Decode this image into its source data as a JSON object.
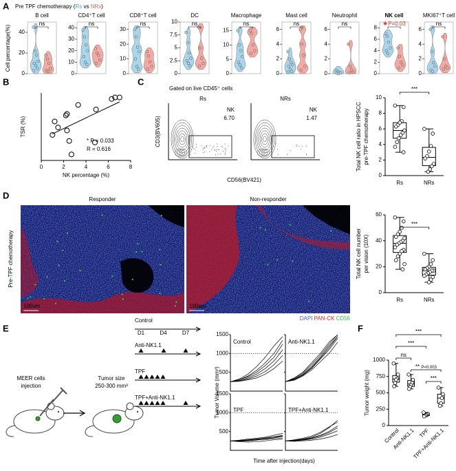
{
  "panels": [
    "A",
    "B",
    "C",
    "D",
    "E",
    "F"
  ],
  "chart_data": [
    {
      "type": "violin",
      "title_parts": [
        "Pre TPF chemotherapy (",
        "Rs",
        " vs ",
        "NRs",
        ")"
      ],
      "title_part_colors": [
        "#000",
        "#4aa8d8",
        "#000",
        "#e06a5f",
        "#000"
      ],
      "ylabel": "Cell percentage(%)",
      "colors": [
        "#a9d6ea",
        "#f3aaa2"
      ],
      "plots": [
        {
          "title": "B cell",
          "ylim": [
            0,
            50
          ],
          "yticks": [
            0,
            20,
            40
          ],
          "sig": "ns",
          "series": [
            {
              "values": [
                45,
                22,
                18,
                12,
                10,
                8,
                5,
                3
              ]
            },
            {
              "values": [
                18,
                14,
                10,
                5,
                3,
                2
              ]
            }
          ]
        },
        {
          "title": "CD4⁺T cell",
          "ylim": [
            0,
            45
          ],
          "yticks": [
            0,
            10,
            20,
            30,
            40
          ],
          "sig": "ns",
          "series": [
            {
              "values": [
                38,
                32,
                25,
                20,
                15,
                10,
                8
              ]
            },
            {
              "values": [
                22,
                18,
                16,
                12,
                9
              ]
            }
          ]
        },
        {
          "title": "CD8⁺T cell",
          "ylim": [
            0,
            35
          ],
          "yticks": [
            0,
            10,
            20,
            30
          ],
          "sig": "ns",
          "series": [
            {
              "values": [
                30,
                25,
                18,
                15,
                10,
                5,
                3
              ]
            },
            {
              "values": [
                15,
                12,
                8,
                5,
                3
              ]
            }
          ]
        },
        {
          "title": "DC",
          "ylim": [
            0,
            10
          ],
          "yticks": [
            0,
            2.5,
            5,
            7.5,
            10
          ],
          "sig": "ns",
          "series": [
            {
              "values": [
                8,
                6,
                4,
                3,
                2.5,
                2,
                1.5
              ]
            },
            {
              "values": [
                9,
                5,
                3,
                2,
                1.5
              ]
            }
          ]
        },
        {
          "title": "Macrophage",
          "ylim": [
            0,
            18
          ],
          "yticks": [
            0,
            5,
            10,
            15
          ],
          "sig": "ns",
          "series": [
            {
              "values": [
                15,
                10,
                8,
                6,
                4,
                3,
                2
              ]
            },
            {
              "values": [
                15,
                14,
                10,
                8,
                7
              ]
            }
          ]
        },
        {
          "title": "Mast cell",
          "ylim": [
            0,
            7
          ],
          "yticks": [
            0,
            2,
            4,
            6
          ],
          "sig": "ns",
          "series": [
            {
              "values": [
                3,
                2,
                1.5,
                1.2,
                1,
                0.6,
                0.3,
                0.2
              ]
            },
            {
              "values": [
                6,
                4,
                2.5,
                1,
                0.5
              ]
            }
          ]
        },
        {
          "title": "Neutrophil",
          "ylim": [
            0,
            7
          ],
          "yticks": [
            0,
            2,
            4,
            6
          ],
          "sig": "ns",
          "series": [
            {
              "values": [
                0.5,
                0.3,
                0.2,
                0.1,
                0.1,
                0
              ]
            },
            {
              "values": [
                4,
                1,
                0.5,
                0.2,
                0.1
              ]
            }
          ]
        },
        {
          "title": "NK cell",
          "bold": true,
          "ylim": [
            0,
            9
          ],
          "yticks": [
            0,
            2,
            4,
            6,
            8
          ],
          "sig_mark": "★",
          "sig": "P=0.03",
          "sig_color": "#e0302a",
          "series": [
            {
              "values": [
                7,
                6.5,
                5.5,
                4.5,
                4,
                3.5
              ]
            },
            {
              "values": [
                4.5,
                3,
                2,
                1.5,
                1
              ]
            }
          ]
        },
        {
          "title": "MKI67⁺T cell",
          "ylim": [
            0,
            7
          ],
          "yticks": [
            0,
            2,
            4,
            6
          ],
          "sig": "ns",
          "series": [
            {
              "values": [
                6,
                3,
                1.5,
                1,
                0.5,
                0.3
              ]
            },
            {
              "values": [
                5,
                2,
                1,
                0.8,
                0.6
              ]
            }
          ]
        }
      ]
    },
    {
      "type": "scatter",
      "xlabel": "NK percentage (%)",
      "ylabel": "TSR (%)",
      "x": [
        1,
        1.2,
        1.5,
        2.2,
        2.3,
        2.3,
        2.5,
        2.7,
        3.3,
        4.8,
        4.9,
        6.3,
        6.6,
        7
      ],
      "y": [
        -25,
        20,
        0,
        40,
        45,
        -10,
        -45,
        -90,
        75,
        -50,
        60,
        95,
        100,
        100
      ],
      "xlim": [
        0,
        8
      ],
      "xticks": [
        0,
        2,
        4,
        6,
        8
      ],
      "ylim": [
        -110,
        115
      ],
      "annotations": [
        "* P = 0.033",
        "R = 0.616"
      ],
      "annotation_color": "#d9362b",
      "color": "#000"
    },
    {
      "type": "flow",
      "header": "Gated on live CD45⁺ cells",
      "xlabel": "CD56(BV421)",
      "ylabel": "CD3(BV605)",
      "plots": [
        {
          "title": "Rs",
          "gate": "NK",
          "value": "6.70"
        },
        {
          "title": "NRs",
          "gate": "NK",
          "value": "1.47"
        }
      ]
    },
    {
      "type": "box",
      "ylabel_lines": [
        "Total NK cell ratio in HPSCC",
        "pre-TPF chemotherapy"
      ],
      "categories": [
        "Rs",
        "NRs"
      ],
      "color": "#000",
      "ylim": [
        0,
        10
      ],
      "yticks": [
        0,
        2,
        4,
        6,
        8,
        10
      ],
      "series": [
        {
          "values": [
            9,
            8.8,
            7,
            6.8,
            6.5,
            6.3,
            5.8,
            5.5,
            5.2,
            4.8,
            4.3,
            3.7,
            3
          ]
        },
        {
          "values": [
            6,
            5.4,
            3.8,
            3.1,
            2.5,
            2.2,
            1.5,
            1.2,
            0.8,
            0.5
          ]
        }
      ],
      "comparisons": [
        {
          "pair": [
            0,
            1
          ],
          "label": "***"
        }
      ]
    },
    {
      "type": "image",
      "titles": [
        "Responder",
        "Non-responder"
      ],
      "side_label": "Pre-TPF chemotherapy",
      "magnification": "10X",
      "scale_bar": "100um",
      "legend": [
        {
          "name": "DAPI",
          "color": "#3a5bff"
        },
        {
          "name": "PAN-CK",
          "color": "#e0202a"
        },
        {
          "name": "CD56",
          "color": "#2fd04a"
        }
      ]
    },
    {
      "type": "box",
      "ylabel_lines": [
        "Total NK cell number",
        "per vision (10X)"
      ],
      "categories": [
        "Rs",
        "NRs"
      ],
      "color": "#000",
      "ylim": [
        0,
        60
      ],
      "yticks": [
        0,
        20,
        40,
        60
      ],
      "series": [
        {
          "values": [
            58,
            55,
            50,
            47,
            45,
            43,
            42,
            40,
            39,
            38,
            37,
            35,
            33,
            32,
            30,
            28,
            25,
            22,
            18
          ]
        },
        {
          "values": [
            30,
            25,
            22,
            20,
            19,
            18,
            17,
            17,
            16,
            15,
            14,
            13,
            12,
            10,
            8
          ]
        }
      ],
      "comparisons": [
        {
          "pair": [
            0,
            1
          ],
          "label": "***"
        }
      ]
    },
    {
      "type": "schematic",
      "cells": [
        "MEER cells",
        "injection"
      ],
      "tumor": [
        "Tumor size",
        "250-300 mm³"
      ],
      "days": [
        "D1",
        "D4",
        "D7"
      ],
      "groups": [
        "Control",
        "Anti-NK1.1",
        "TPF",
        "TPF+Anti-NK1.1"
      ]
    },
    {
      "type": "line",
      "ylabel": "Tumor Volume (mm³)",
      "xlabel": "Time after injection(days)",
      "ylim": [
        0,
        1500
      ],
      "yticks": [
        500,
        1000,
        1500
      ],
      "reference_line": 1000,
      "color": "#000",
      "panels": [
        {
          "series": [
            {
              "values": [
                250,
                300,
                400,
                550,
                750,
                1000,
                1350
              ]
            },
            {
              "values": [
                250,
                280,
                350,
                450,
                600,
                800,
                1100
              ]
            },
            {
              "values": [
                250,
                320,
                450,
                650,
                900,
                1200,
                1450
              ]
            },
            {
              "values": [
                250,
                270,
                320,
                400,
                520,
                700,
                950
              ]
            },
            {
              "values": [
                250,
                300,
                380,
                500,
                680,
                900,
                1250
              ]
            },
            {
              "values": [
                250,
                260,
                300,
                350,
                450,
                600,
                800
              ]
            }
          ]
        },
        {
          "series": [
            {
              "values": [
                250,
                350,
                500,
                750,
                1000,
                1300,
                1500
              ]
            },
            {
              "values": [
                250,
                320,
                450,
                650,
                900,
                1200,
                1450
              ]
            },
            {
              "values": [
                250,
                300,
                420,
                600,
                850,
                1100,
                1400
              ]
            },
            {
              "values": [
                250,
                340,
                480,
                700,
                950,
                1250,
                1500
              ]
            },
            {
              "values": [
                250,
                290,
                400,
                560,
                780,
                1000,
                1300
              ]
            },
            {
              "values": [
                250,
                310,
                430,
                620,
                870,
                1150,
                1450
              ]
            }
          ]
        },
        {
          "series": [
            {
              "values": [
                250,
                260,
                280,
                300,
                330,
                360,
                400
              ]
            },
            {
              "values": [
                250,
                240,
                250,
                270,
                300,
                330,
                370
              ]
            },
            {
              "values": [
                250,
                270,
                300,
                320,
                350,
                400,
                450
              ]
            },
            {
              "values": [
                250,
                230,
                220,
                230,
                250,
                280,
                300
              ]
            },
            {
              "values": [
                250,
                260,
                270,
                290,
                320,
                350,
                380
              ]
            },
            {
              "values": [
                250,
                250,
                260,
                280,
                290,
                310,
                330
              ]
            }
          ]
        },
        {
          "series": [
            {
              "values": [
                250,
                270,
                300,
                350,
                450,
                600,
                800
              ]
            },
            {
              "values": [
                250,
                260,
                290,
                330,
                400,
                500,
                650
              ]
            },
            {
              "values": [
                250,
                280,
                320,
                380,
                480,
                620,
                750
              ]
            },
            {
              "values": [
                250,
                250,
                270,
                300,
                350,
                430,
                520
              ]
            },
            {
              "values": [
                250,
                260,
                280,
                320,
                380,
                470,
                600
              ]
            },
            {
              "values": [
                250,
                240,
                250,
                270,
                300,
                350,
                420
              ]
            }
          ]
        }
      ]
    },
    {
      "type": "box",
      "ylabel": "Tumor weight (mg)",
      "categories": [
        "Control",
        "Anti-NK1.1",
        "TPF",
        "TPF+Anti-NK1.1"
      ],
      "color": "#000",
      "ylim": [
        0,
        1000
      ],
      "yticks": [
        0,
        250,
        500,
        750,
        1000
      ],
      "series": [
        {
          "values": [
            950,
            780,
            720,
            700,
            650,
            600
          ]
        },
        {
          "values": [
            780,
            700,
            650,
            620,
            590,
            560
          ]
        },
        {
          "values": [
            200,
            180,
            170,
            160,
            150,
            140
          ]
        },
        {
          "values": [
            580,
            480,
            420,
            340,
            300
          ]
        }
      ],
      "comparisons": [
        {
          "pair": [
            0,
            3
          ],
          "label": "***"
        },
        {
          "pair": [
            0,
            2
          ],
          "label": "***"
        },
        {
          "pair": [
            0,
            1
          ],
          "label": "ns"
        },
        {
          "pair": [
            1,
            3
          ],
          "label": "**",
          "note": "P=0.003"
        },
        {
          "pair": [
            2,
            3
          ],
          "label": "***"
        }
      ]
    }
  ]
}
